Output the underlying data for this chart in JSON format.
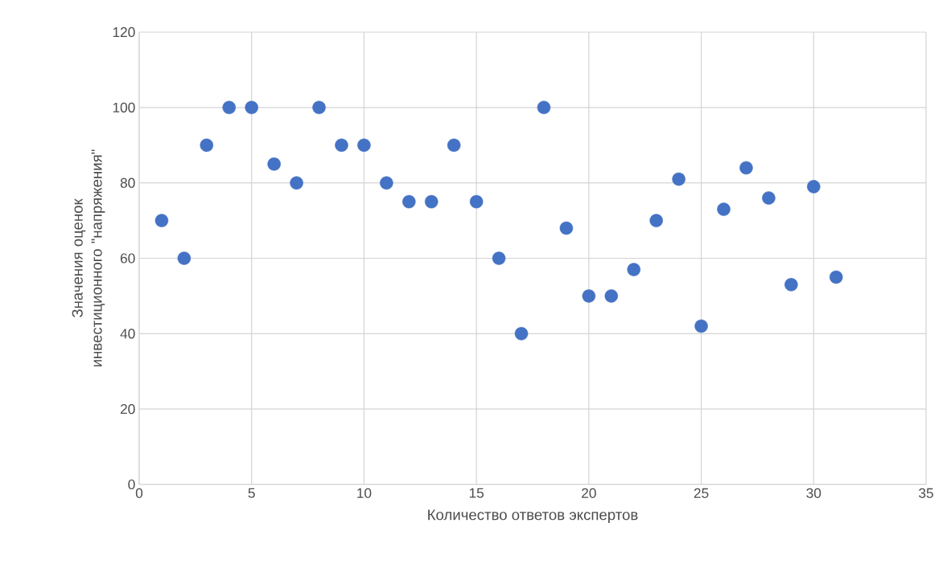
{
  "chart_data": {
    "type": "scatter",
    "xlabel": "Количество ответов экспертов",
    "ylabel": "Значения оценок инвестиционного \"напряжения\"",
    "x": [
      1,
      2,
      3,
      4,
      5,
      6,
      7,
      8,
      9,
      10,
      11,
      12,
      13,
      14,
      15,
      16,
      17,
      18,
      19,
      20,
      21,
      22,
      23,
      24,
      25,
      26,
      27,
      28,
      29,
      30,
      31
    ],
    "values": [
      70,
      60,
      90,
      100,
      100,
      85,
      80,
      100,
      90,
      90,
      80,
      75,
      75,
      90,
      75,
      60,
      40,
      100,
      68,
      50,
      50,
      57,
      70,
      81,
      42,
      73,
      84,
      76,
      53,
      79,
      55
    ],
    "color": "#4472c4",
    "xlim": [
      0,
      35
    ],
    "ylim": [
      0,
      120
    ],
    "xticks": [
      0,
      5,
      10,
      15,
      20,
      25,
      30,
      35
    ],
    "yticks": [
      0,
      20,
      40,
      60,
      80,
      100,
      120
    ],
    "grid": true,
    "marker": "circle"
  }
}
